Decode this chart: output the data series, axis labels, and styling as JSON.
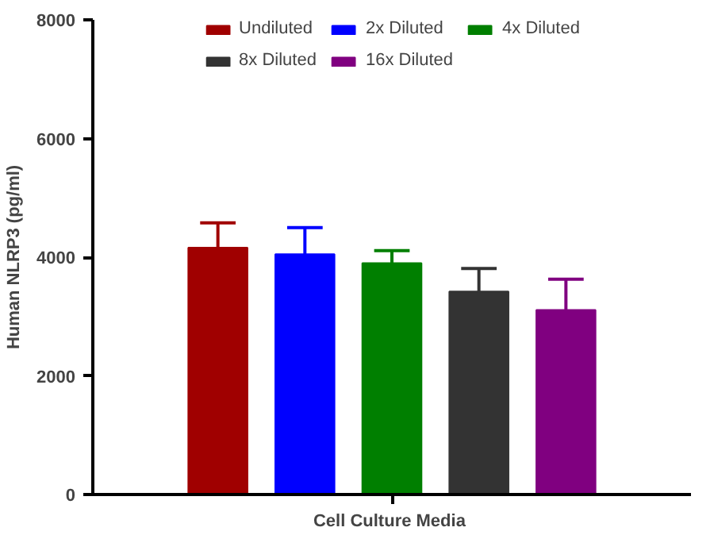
{
  "chart_data": {
    "type": "bar",
    "ylabel": "Human NLRP3 (pg/ml)",
    "categories": [
      "Cell  Culture Media"
    ],
    "series": [
      {
        "name": "Undiluted",
        "color": "#a00000",
        "values": [
          4160
        ],
        "errors": [
          [
            4160,
            4580
          ]
        ]
      },
      {
        "name": "2x Diluted",
        "color": "#0000ff",
        "values": [
          4050
        ],
        "errors": [
          [
            4050,
            4500
          ]
        ]
      },
      {
        "name": "4x Diluted",
        "color": "#007f00",
        "values": [
          3900
        ],
        "errors": [
          [
            3900,
            4110
          ]
        ]
      },
      {
        "name": "8x Diluted",
        "color": "#333333",
        "values": [
          3420
        ],
        "errors": [
          [
            3420,
            3810
          ]
        ]
      },
      {
        "name": "16x Diluted",
        "color": "#800080",
        "values": [
          3110
        ],
        "errors": [
          [
            3110,
            3630
          ]
        ]
      }
    ],
    "ylim": [
      0,
      8000
    ],
    "yticks": [
      0,
      2000,
      4000,
      6000,
      8000
    ],
    "grid": false,
    "legend": "top"
  }
}
